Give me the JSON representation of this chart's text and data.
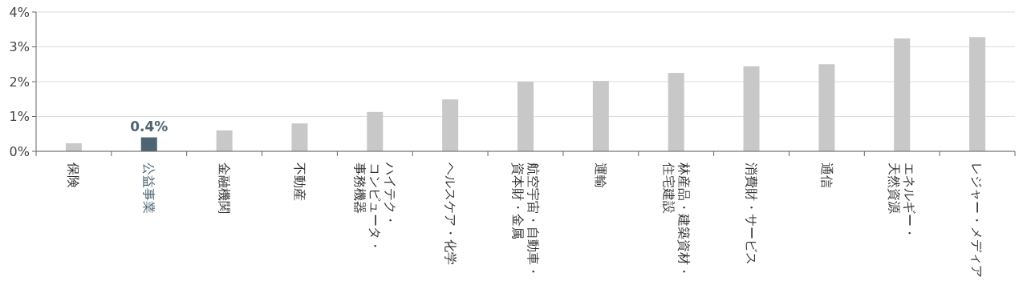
{
  "chart_data": {
    "type": "bar",
    "categories": [
      "保険",
      "公益事業",
      "金融機関",
      "不動産",
      "ハイテク・コンピュータ・事務機器",
      "ヘルスケア・化学",
      "航空宇宙・自動車・資本財・金属",
      "運輸",
      "林産品・建築資材・住宅建設",
      "消費財・サービス",
      "通信",
      "エネルギー・天然資源",
      "レジャー・メディア"
    ],
    "values": [
      0.23,
      0.4,
      0.6,
      0.8,
      1.13,
      1.49,
      2.0,
      2.02,
      2.25,
      2.44,
      2.5,
      3.24,
      3.28
    ],
    "colors": [
      "#c8c8c8",
      "#4d6472",
      "#c8c8c8",
      "#c8c8c8",
      "#c8c8c8",
      "#c8c8c8",
      "#c8c8c8",
      "#c8c8c8",
      "#c8c8c8",
      "#c8c8c8",
      "#c8c8c8",
      "#c8c8c8",
      "#c8c8c8"
    ],
    "value_labels": [
      null,
      "0.4%",
      null,
      null,
      null,
      null,
      null,
      null,
      null,
      null,
      null,
      null,
      null
    ],
    "ylim": [
      0,
      4
    ],
    "yticks": [
      {
        "value": 0,
        "label": "0%"
      },
      {
        "value": 1,
        "label": "1%"
      },
      {
        "value": 2,
        "label": "2%"
      },
      {
        "value": 3,
        "label": "3%"
      },
      {
        "value": 4,
        "label": "4%"
      }
    ],
    "grid": "y"
  }
}
